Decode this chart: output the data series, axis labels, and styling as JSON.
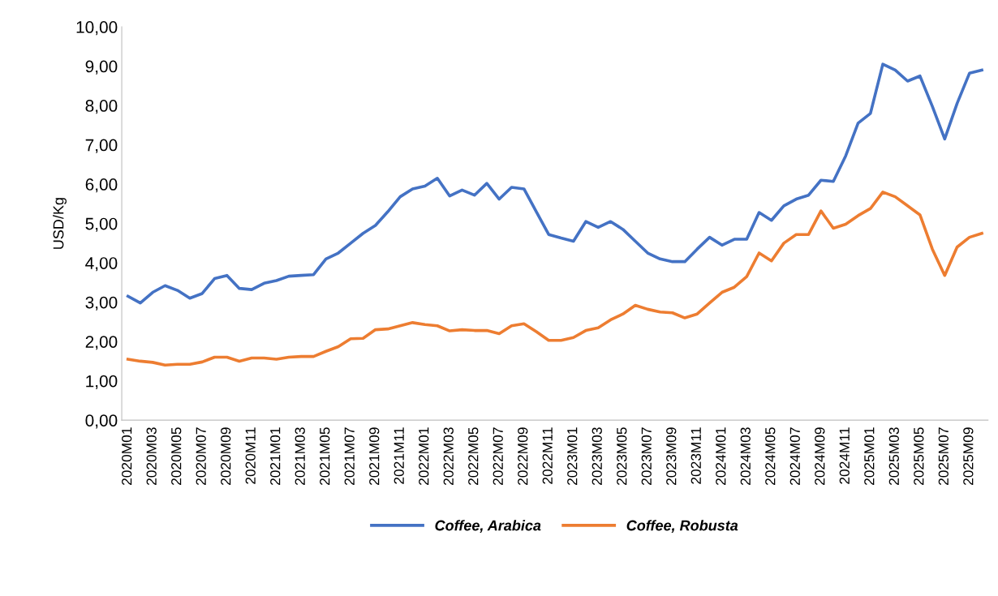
{
  "chart_data": {
    "type": "line",
    "ylabel": "USD/Kg",
    "categories": [
      "2020M01",
      null,
      "2020M03",
      null,
      "2020M05",
      null,
      "2020M07",
      null,
      "2020M09",
      null,
      "2020M11",
      null,
      "2021M01",
      null,
      "2021M03",
      null,
      "2021M05",
      null,
      "2021M07",
      null,
      "2021M09",
      null,
      "2021M11",
      null,
      "2022M01",
      null,
      "2022M03",
      null,
      "2022M05",
      null,
      "2022M07",
      null,
      "2022M09",
      null,
      "2022M11",
      null,
      "2023M01",
      null,
      "2023M03",
      null,
      "2023M05",
      null,
      "2023M07",
      null,
      "2023M09",
      null,
      "2023M11",
      null,
      "2024M01",
      null,
      "2024M03",
      null,
      "2024M05",
      null,
      "2024M07",
      null,
      "2024M09",
      null,
      "2024M11",
      null,
      "2025M01",
      null,
      "2025M03",
      null,
      "2025M05",
      null,
      "2025M07",
      null,
      "2025M09",
      null
    ],
    "series": [
      {
        "name": "Coffee, Arabica",
        "color": "#4472c4",
        "values": [
          3.15,
          2.98,
          3.25,
          3.42,
          3.3,
          3.1,
          3.22,
          3.6,
          3.68,
          3.35,
          3.32,
          3.48,
          3.55,
          3.66,
          3.68,
          3.7,
          4.1,
          4.25,
          4.5,
          4.75,
          4.95,
          5.3,
          5.68,
          5.88,
          5.95,
          6.15,
          5.7,
          5.85,
          5.72,
          6.02,
          5.62,
          5.92,
          5.88,
          5.3,
          4.72,
          4.63,
          4.55,
          5.05,
          4.9,
          5.05,
          4.85,
          4.55,
          4.25,
          4.1,
          4.03,
          4.03,
          4.35,
          4.65,
          4.45,
          4.6,
          4.6,
          5.28,
          5.08,
          5.45,
          5.62,
          5.72,
          6.1,
          6.07,
          6.72,
          7.55,
          7.8,
          9.05,
          8.9,
          8.62,
          8.75,
          7.98,
          7.15,
          8.05,
          8.82,
          8.9
        ]
      },
      {
        "name": "Coffee, Robusta",
        "color": "#ed7d31",
        "values": [
          1.55,
          1.5,
          1.47,
          1.4,
          1.42,
          1.42,
          1.48,
          1.6,
          1.6,
          1.5,
          1.58,
          1.58,
          1.55,
          1.6,
          1.62,
          1.62,
          1.75,
          1.87,
          2.07,
          2.08,
          2.3,
          2.32,
          2.4,
          2.48,
          2.43,
          2.4,
          2.27,
          2.3,
          2.28,
          2.28,
          2.2,
          2.4,
          2.45,
          2.25,
          2.03,
          2.03,
          2.1,
          2.28,
          2.35,
          2.55,
          2.7,
          2.92,
          2.82,
          2.75,
          2.73,
          2.6,
          2.7,
          2.98,
          3.25,
          3.38,
          3.65,
          4.25,
          4.05,
          4.5,
          4.72,
          4.72,
          5.32,
          4.88,
          4.98,
          5.2,
          5.38,
          5.8,
          5.68,
          5.45,
          5.22,
          4.35,
          3.68,
          4.4,
          4.65,
          4.75
        ]
      }
    ],
    "ylim": [
      0,
      10
    ],
    "yticks": [
      {
        "value": 0,
        "label": "0,00"
      },
      {
        "value": 1,
        "label": "1,00"
      },
      {
        "value": 2,
        "label": "2,00"
      },
      {
        "value": 3,
        "label": "3,00"
      },
      {
        "value": 4,
        "label": "4,00"
      },
      {
        "value": 5,
        "label": "5,00"
      },
      {
        "value": 6,
        "label": "6,00"
      },
      {
        "value": 7,
        "label": "7,00"
      },
      {
        "value": 8,
        "label": "8,00"
      },
      {
        "value": 9,
        "label": "9,00"
      },
      {
        "value": 10,
        "label": "10,00"
      }
    ],
    "grid": false,
    "legend": "bottom",
    "marker": "none",
    "line_style": "solid"
  }
}
